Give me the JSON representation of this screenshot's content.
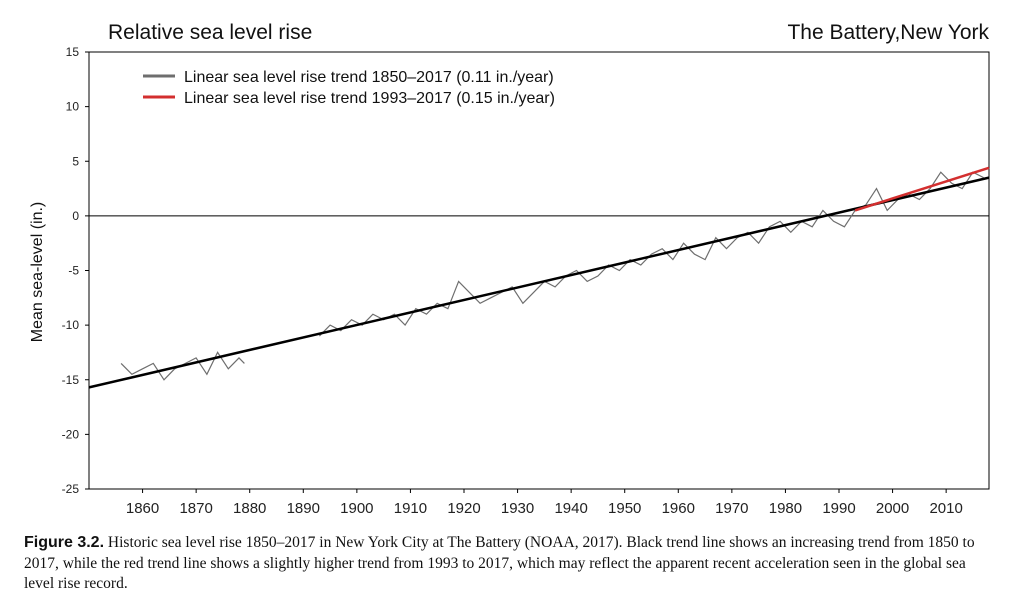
{
  "caption": {
    "label": "Figure 3.2.",
    "text": "Historic sea level rise 1850–2017 in New York City at The Battery (NOAA, 2017). Black trend line shows an increasing trend from 1850 to 2017, while the red trend line shows a slightly higher trend from 1993 to 2017, which may reflect the apparent recent acceleration seen in the global sea level rise record."
  },
  "chart_data": {
    "type": "line",
    "title": "Relative sea  level rise",
    "subtitle": "The Battery,New York",
    "xlabel": "",
    "ylabel": "Mean sea-level (in.)",
    "xlim": [
      1850,
      2018
    ],
    "ylim": [
      -25,
      15
    ],
    "x_ticks": [
      1860,
      1870,
      1880,
      1890,
      1900,
      1910,
      1920,
      1930,
      1940,
      1950,
      1960,
      1970,
      1980,
      1990,
      2000,
      2010
    ],
    "y_ticks": [
      15,
      10,
      5,
      0,
      -5,
      -10,
      -15,
      -20,
      -25
    ],
    "grid": false,
    "legend": "top-left",
    "colors": {
      "observed": "#6e6e6e",
      "trend_long": "#000000",
      "trend_recent": "#d32f2f",
      "zero_line": "#000000"
    },
    "observed_segments": [
      {
        "x": [
          1856,
          1858,
          1860,
          1862,
          1864,
          1866,
          1868,
          1870,
          1872,
          1874,
          1876,
          1878,
          1879
        ],
        "y": [
          -13.5,
          -14.5,
          -14.0,
          -13.5,
          -15.0,
          -14.0,
          -13.5,
          -13.0,
          -14.5,
          -12.5,
          -14.0,
          -13.0,
          -13.5
        ]
      },
      {
        "x": [
          1893,
          1895,
          1897,
          1899,
          1901,
          1903,
          1905,
          1907,
          1909,
          1911,
          1913,
          1915,
          1917,
          1919,
          1921,
          1923,
          1925,
          1927,
          1929,
          1931,
          1933,
          1935,
          1937,
          1939,
          1941,
          1943,
          1945,
          1947,
          1949,
          1951,
          1953,
          1955,
          1957,
          1959,
          1961,
          1963,
          1965,
          1967,
          1969,
          1971,
          1973,
          1975,
          1977,
          1979,
          1981,
          1983,
          1985,
          1987,
          1989,
          1991,
          1993,
          1995,
          1997,
          1999,
          2001,
          2003,
          2005,
          2007,
          2009,
          2011,
          2013,
          2015,
          2017
        ],
        "y": [
          -11.0,
          -10.0,
          -10.5,
          -9.5,
          -10.0,
          -9.0,
          -9.5,
          -9.0,
          -10.0,
          -8.5,
          -9.0,
          -8.0,
          -8.5,
          -6.0,
          -7.0,
          -8.0,
          -7.5,
          -7.0,
          -6.5,
          -8.0,
          -7.0,
          -6.0,
          -6.5,
          -5.5,
          -5.0,
          -6.0,
          -5.5,
          -4.5,
          -5.0,
          -4.0,
          -4.5,
          -3.5,
          -3.0,
          -4.0,
          -2.5,
          -3.5,
          -4.0,
          -2.0,
          -3.0,
          -2.0,
          -1.5,
          -2.5,
          -1.0,
          -0.5,
          -1.5,
          -0.5,
          -1.0,
          0.5,
          -0.5,
          -1.0,
          0.5,
          1.0,
          2.5,
          0.5,
          1.5,
          2.0,
          1.5,
          2.5,
          4.0,
          3.0,
          2.5,
          4.0,
          3.5
        ]
      }
    ],
    "series": [
      {
        "name": "Linear sea level rise trend 1850–2017 (0.11 in./year)",
        "x": [
          1850,
          2018
        ],
        "y": [
          -15.7,
          3.5
        ]
      },
      {
        "name": "Linear sea level rise trend 1993–2017 (0.15 in./year)",
        "x": [
          1993,
          2018
        ],
        "y": [
          0.5,
          4.4
        ]
      }
    ]
  }
}
